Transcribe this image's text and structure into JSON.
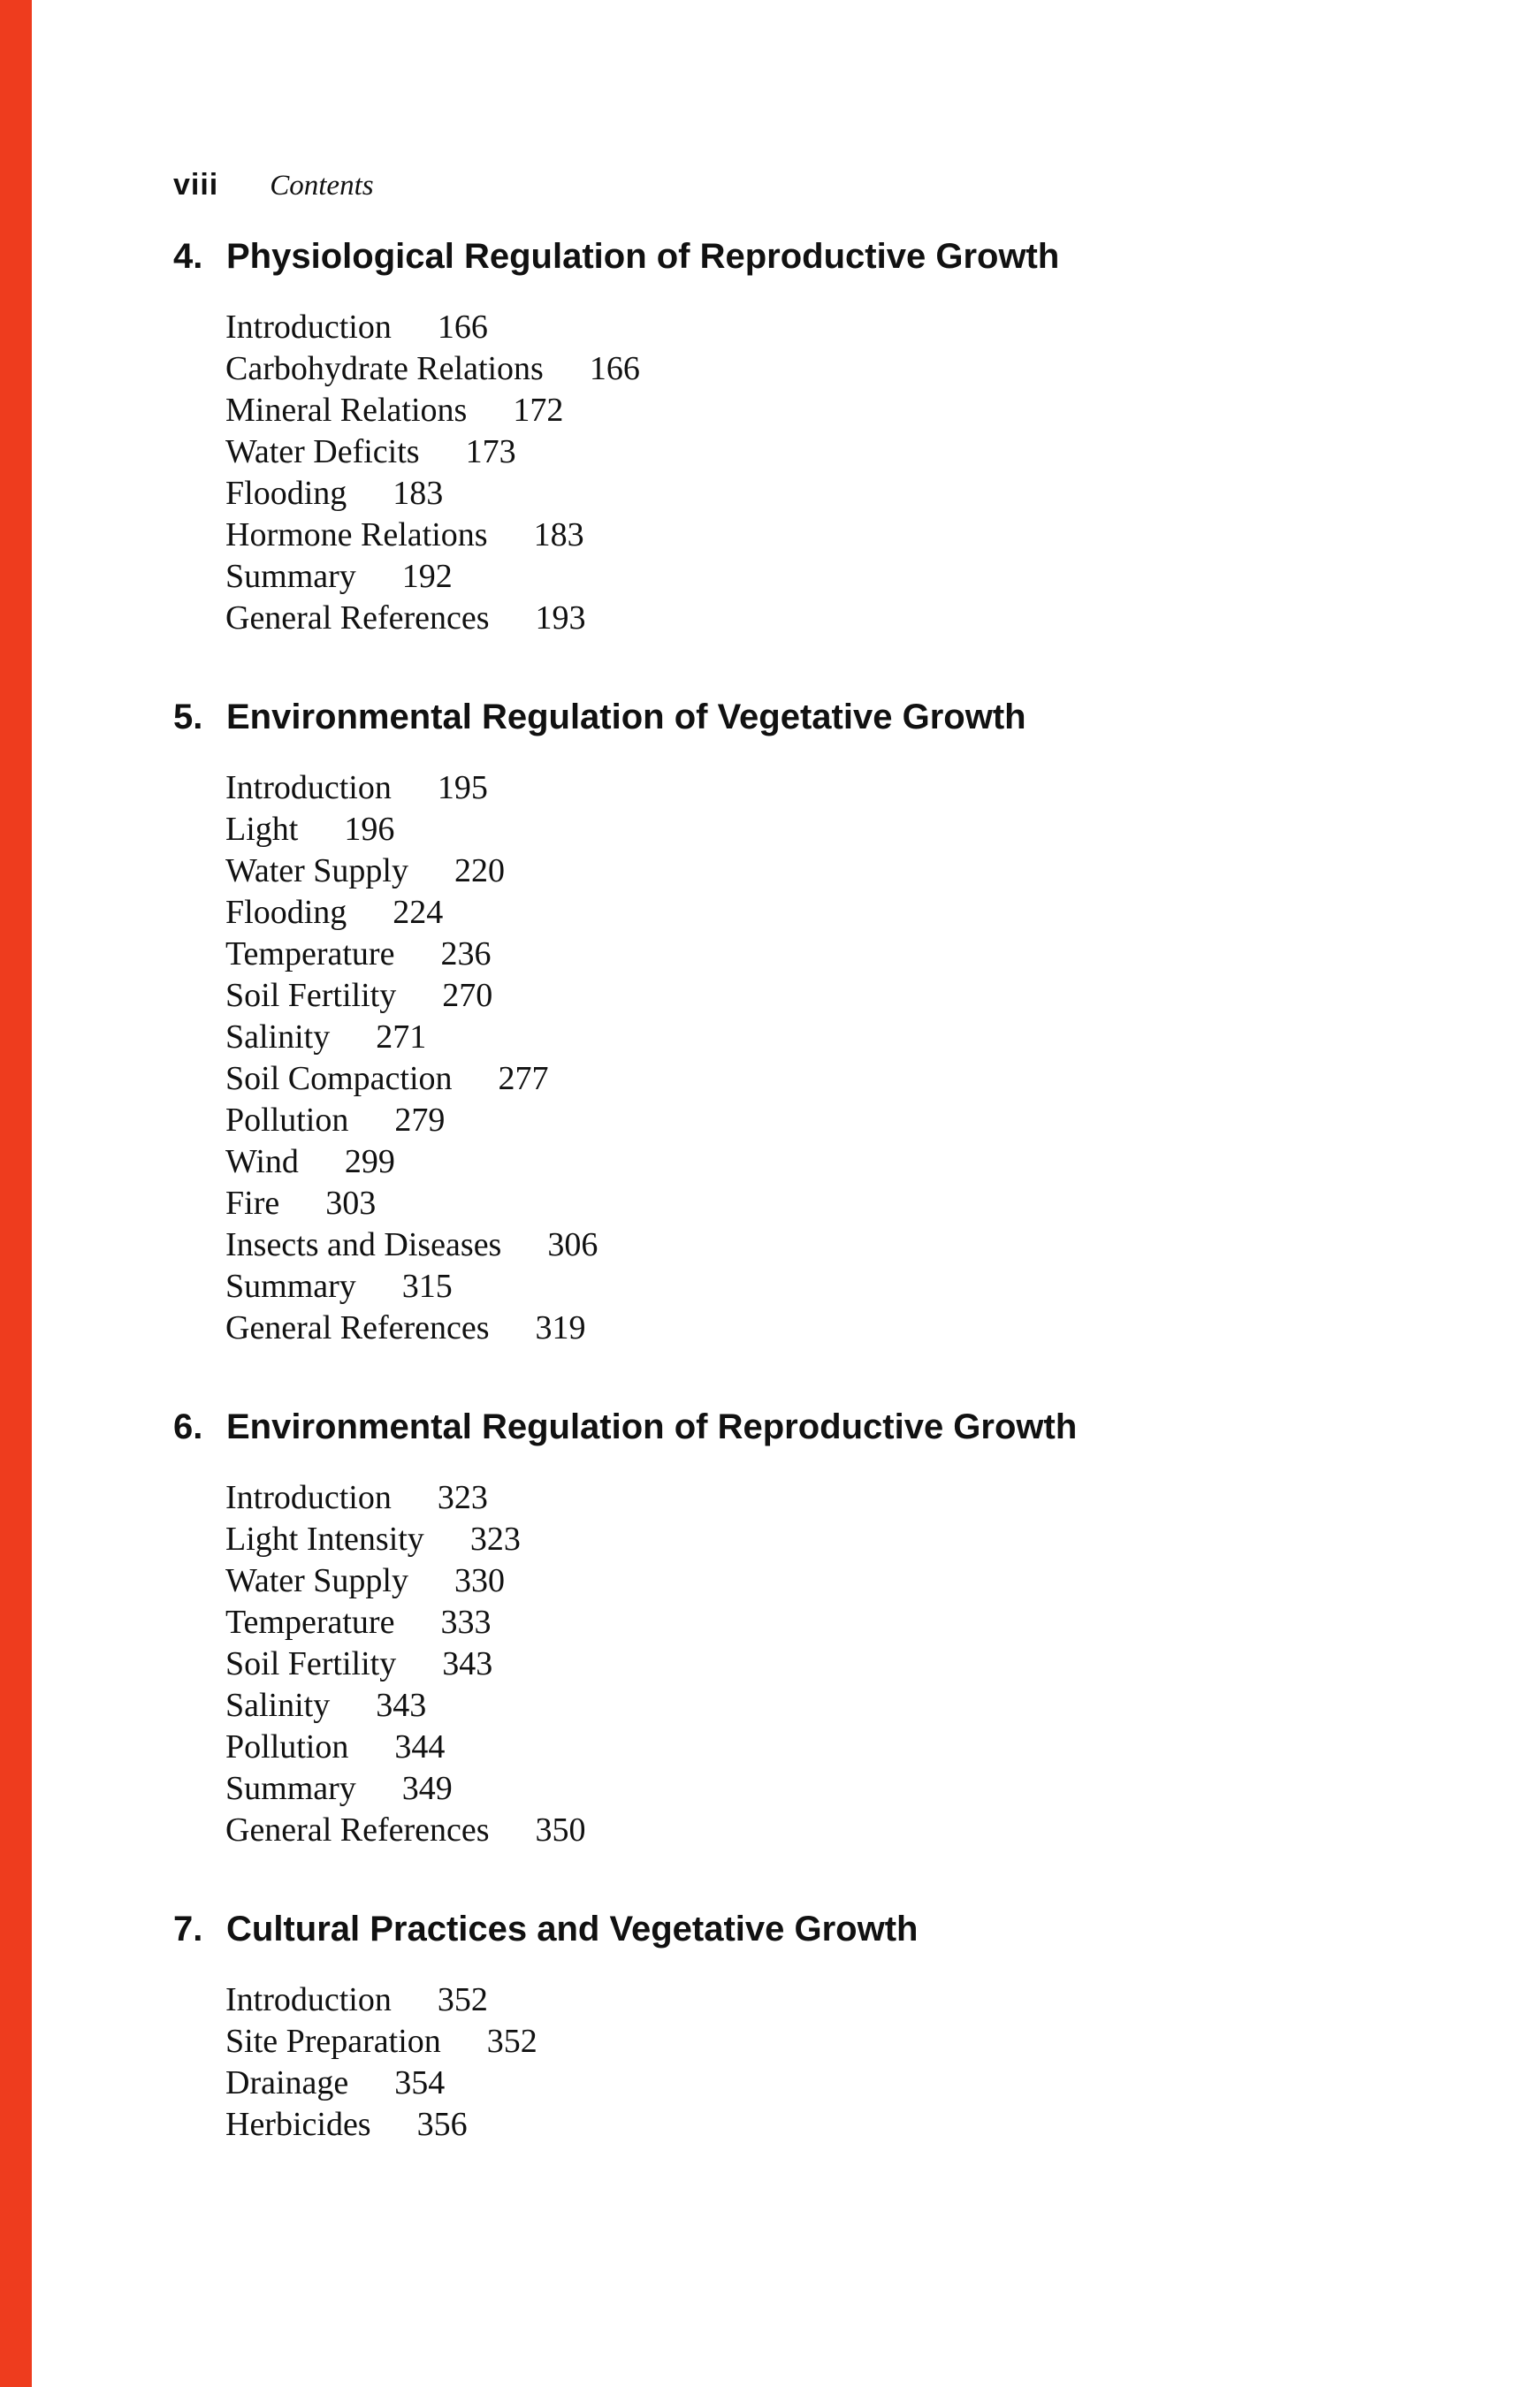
{
  "accent": {
    "edge_bar_color": "#ee3c1e",
    "ink_color": "#111111"
  },
  "header": {
    "page_number_roman": "viii",
    "running_title": "Contents"
  },
  "chapters": [
    {
      "number": "4.",
      "title": "Physiological Regulation of Reproductive Growth",
      "entries": [
        {
          "label": "Introduction",
          "page": "166"
        },
        {
          "label": "Carbohydrate Relations",
          "page": "166"
        },
        {
          "label": "Mineral Relations",
          "page": "172"
        },
        {
          "label": "Water Deficits",
          "page": "173"
        },
        {
          "label": "Flooding",
          "page": "183"
        },
        {
          "label": "Hormone Relations",
          "page": "183"
        },
        {
          "label": "Summary",
          "page": "192"
        },
        {
          "label": "General References",
          "page": "193"
        }
      ]
    },
    {
      "number": "5.",
      "title": "Environmental Regulation of Vegetative Growth",
      "entries": [
        {
          "label": "Introduction",
          "page": "195"
        },
        {
          "label": "Light",
          "page": "196"
        },
        {
          "label": "Water Supply",
          "page": "220"
        },
        {
          "label": "Flooding",
          "page": "224"
        },
        {
          "label": "Temperature",
          "page": "236"
        },
        {
          "label": "Soil Fertility",
          "page": "270"
        },
        {
          "label": "Salinity",
          "page": "271"
        },
        {
          "label": "Soil Compaction",
          "page": "277"
        },
        {
          "label": "Pollution",
          "page": "279"
        },
        {
          "label": "Wind",
          "page": "299"
        },
        {
          "label": "Fire",
          "page": "303"
        },
        {
          "label": "Insects and Diseases",
          "page": "306"
        },
        {
          "label": "Summary",
          "page": "315"
        },
        {
          "label": "General References",
          "page": "319"
        }
      ]
    },
    {
      "number": "6.",
      "title": "Environmental Regulation of Reproductive Growth",
      "entries": [
        {
          "label": "Introduction",
          "page": "323"
        },
        {
          "label": "Light Intensity",
          "page": "323"
        },
        {
          "label": "Water Supply",
          "page": "330"
        },
        {
          "label": "Temperature",
          "page": "333"
        },
        {
          "label": "Soil Fertility",
          "page": "343"
        },
        {
          "label": "Salinity",
          "page": "343"
        },
        {
          "label": "Pollution",
          "page": "344"
        },
        {
          "label": "Summary",
          "page": "349"
        },
        {
          "label": "General References",
          "page": "350"
        }
      ]
    },
    {
      "number": "7.",
      "title": "Cultural Practices and Vegetative Growth",
      "entries": [
        {
          "label": "Introduction",
          "page": "352"
        },
        {
          "label": "Site Preparation",
          "page": "352"
        },
        {
          "label": "Drainage",
          "page": "354"
        },
        {
          "label": "Herbicides",
          "page": "356"
        }
      ]
    }
  ]
}
